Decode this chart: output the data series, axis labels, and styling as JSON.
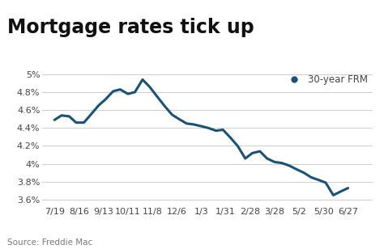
{
  "title": "Mortgage rates tick up",
  "legend_label": "30-year FRM",
  "legend_color": "#1a5276",
  "line_color": "#1a5276",
  "source_text": "Source: Freddie Mac",
  "background_color": "#ffffff",
  "x_labels": [
    "7/19",
    "8/16",
    "9/13",
    "10/11",
    "11/8",
    "12/6",
    "1/3",
    "1/31",
    "2/28",
    "3/28",
    "5/2",
    "5/30",
    "6/27"
  ],
  "x_values": [
    0,
    1,
    2,
    3,
    4,
    5,
    6,
    7,
    8,
    9,
    10,
    11,
    12
  ],
  "y_values": [
    4.49,
    4.54,
    4.53,
    4.46,
    4.46,
    4.55,
    4.65,
    4.72,
    4.81,
    4.83,
    4.78,
    4.8,
    4.94,
    4.86,
    4.75,
    4.65,
    4.55,
    4.5,
    4.45,
    4.44,
    4.42,
    4.4,
    4.37,
    4.38,
    4.29,
    4.2,
    4.06,
    4.12,
    4.14,
    4.06,
    4.02,
    4.01,
    3.98,
    3.94,
    3.9,
    3.85,
    3.82,
    3.79,
    3.65,
    3.69,
    3.73
  ],
  "x_fine": [
    0.0,
    0.12,
    0.25,
    0.37,
    0.5,
    0.62,
    0.75,
    0.87,
    1.0,
    1.12,
    1.25,
    1.37,
    1.5,
    1.62,
    1.75,
    1.87,
    2.0,
    2.12,
    2.25,
    2.37,
    2.5,
    2.62,
    2.75,
    2.87,
    3.0,
    3.12,
    3.25,
    3.37,
    3.5,
    3.62,
    3.75,
    3.87,
    4.0,
    4.12,
    4.25,
    4.37,
    4.5,
    4.62,
    4.75,
    4.87,
    5.0
  ],
  "ylim": [
    3.55,
    5.05
  ],
  "yticks": [
    3.6,
    3.8,
    4.0,
    4.2,
    4.4,
    4.6,
    4.8,
    5.0
  ],
  "title_fontsize": 17,
  "axis_fontsize": 8,
  "source_fontsize": 7.5,
  "line_width": 2.2,
  "grid_color": "#cccccc",
  "tick_color": "#444444"
}
